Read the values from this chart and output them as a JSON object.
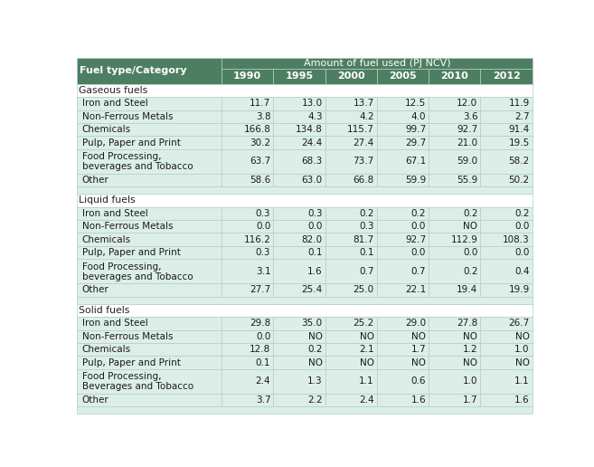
{
  "title_top": "Amount of fuel used (PJ NCV)",
  "col_header": [
    "Fuel type/Category",
    "1990",
    "1995",
    "2000",
    "2005",
    "2010",
    "2012"
  ],
  "sections": [
    {
      "section_label": "Gaseous fuels",
      "rows": [
        [
          "Iron and Steel",
          "11.7",
          "13.0",
          "13.7",
          "12.5",
          "12.0",
          "11.9"
        ],
        [
          "Non-Ferrous Metals",
          "3.8",
          "4.3",
          "4.2",
          "4.0",
          "3.6",
          "2.7"
        ],
        [
          "Chemicals",
          "166.8",
          "134.8",
          "115.7",
          "99.7",
          "92.7",
          "91.4"
        ],
        [
          "Pulp, Paper and Print",
          "30.2",
          "24.4",
          "27.4",
          "29.7",
          "21.0",
          "19.5"
        ],
        [
          "Food Processing,\nbeverages and Tobacco",
          "63.7",
          "68.3",
          "73.7",
          "67.1",
          "59.0",
          "58.2"
        ],
        [
          "Other",
          "58.6",
          "63.0",
          "66.8",
          "59.9",
          "55.9",
          "50.2"
        ]
      ]
    },
    {
      "section_label": "Liquid fuels",
      "rows": [
        [
          "Iron and Steel",
          "0.3",
          "0.3",
          "0.2",
          "0.2",
          "0.2",
          "0.2"
        ],
        [
          "Non-Ferrous Metals",
          "0.0",
          "0.0",
          "0.3",
          "0.0",
          "NO",
          "0.0"
        ],
        [
          "Chemicals",
          "116.2",
          "82.0",
          "81.7",
          "92.7",
          "112.9",
          "108.3"
        ],
        [
          "Pulp, Paper and Print",
          "0.3",
          "0.1",
          "0.1",
          "0.0",
          "0.0",
          "0.0"
        ],
        [
          "Food Processing,\nbeverages and Tobacco",
          "3.1",
          "1.6",
          "0.7",
          "0.7",
          "0.2",
          "0.4"
        ],
        [
          "Other",
          "27.7",
          "25.4",
          "25.0",
          "22.1",
          "19.4",
          "19.9"
        ]
      ]
    },
    {
      "section_label": "Solid fuels",
      "rows": [
        [
          "Iron and Steel",
          "29.8",
          "35.0",
          "25.2",
          "29.0",
          "27.8",
          "26.7"
        ],
        [
          "Non-Ferrous Metals",
          "0.0",
          "NO",
          "NO",
          "NO",
          "NO",
          "NO"
        ],
        [
          "Chemicals",
          "12.8",
          "0.2",
          "2.1",
          "1.7",
          "1.2",
          "1.0"
        ],
        [
          "Pulp, Paper and Print",
          "0.1",
          "NO",
          "NO",
          "NO",
          "NO",
          "NO"
        ],
        [
          "Food Processing,\nBeverages and Tobacco",
          "2.4",
          "1.3",
          "1.1",
          "0.6",
          "1.0",
          "1.1"
        ],
        [
          "Other",
          "3.7",
          "2.2",
          "2.4",
          "1.6",
          "1.7",
          "1.6"
        ]
      ]
    }
  ],
  "header_bg": "#4d7e62",
  "header_fg": "#ffffff",
  "row_bg": "#ddeee9",
  "section_bg": "#ffffff",
  "spacer_bg": "#ddeee9",
  "border_color": "#b0cfc7",
  "figsize": [
    6.57,
    5.16
  ],
  "dpi": 100
}
